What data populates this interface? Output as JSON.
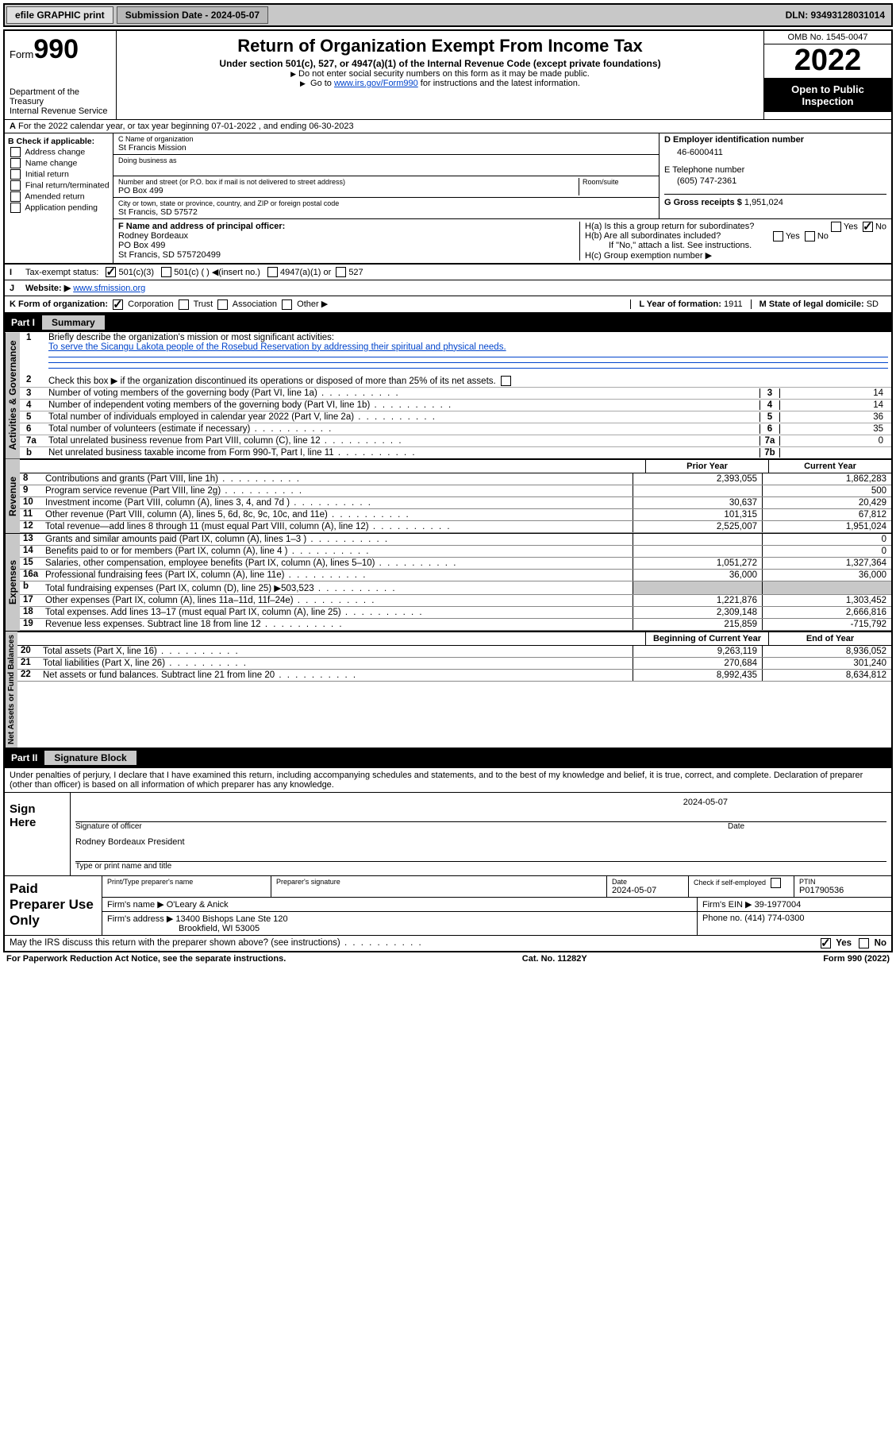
{
  "topbar": {
    "efile": "efile GRAPHIC print",
    "submission": "Submission Date - 2024-05-07",
    "dln": "DLN: 93493128031014"
  },
  "header": {
    "form": "Form",
    "form_no": "990",
    "title": "Return of Organization Exempt From Income Tax",
    "subtitle": "Under section 501(c), 527, or 4947(a)(1) of the Internal Revenue Code (except private foundations)",
    "note1": "Do not enter social security numbers on this form as it may be made public.",
    "note2_pre": "Go to ",
    "note2_link": "www.irs.gov/Form990",
    "note2_post": " for instructions and the latest information.",
    "dept": "Department of the Treasury",
    "irs": "Internal Revenue Service",
    "omb": "OMB No. 1545-0047",
    "year": "2022",
    "open": "Open to Public Inspection"
  },
  "line_a": "For the 2022 calendar year, or tax year beginning 07-01-2022  , and ending 06-30-2023",
  "box_b": {
    "hdr": "B Check if applicable:",
    "opts": [
      "Address change",
      "Name change",
      "Initial return",
      "Final return/terminated",
      "Amended return",
      "Application pending"
    ]
  },
  "box_c": {
    "lbl_name": "C Name of organization",
    "name": "St Francis Mission",
    "lbl_dba": "Doing business as",
    "lbl_street": "Number and street (or P.O. box if mail is not delivered to street address)",
    "street": "PO Box 499",
    "lbl_room": "Room/suite",
    "lbl_city": "City or town, state or province, country, and ZIP or foreign postal code",
    "city": "St Francis, SD  57572"
  },
  "box_d": {
    "lbl": "D Employer identification number",
    "val": "46-6000411"
  },
  "box_e": {
    "lbl": "E Telephone number",
    "val": "(605) 747-2361"
  },
  "box_g": {
    "lbl": "G Gross receipts $",
    "val": "1,951,024"
  },
  "box_f": {
    "lbl": "F Name and address of principal officer:",
    "name": "Rodney Bordeaux",
    "addr1": "PO Box 499",
    "addr2": "St Francis, SD  575720499"
  },
  "box_h": {
    "ha": "H(a)  Is this a group return for subordinates?",
    "hb": "H(b)  Are all subordinates included?",
    "hb_note": "If \"No,\" attach a list. See instructions.",
    "hc": "H(c)  Group exemption number ▶",
    "yes": "Yes",
    "no": "No"
  },
  "line_i": {
    "lbl": "Tax-exempt status:",
    "o1": "501(c)(3)",
    "o2": "501(c) (  ) ◀(insert no.)",
    "o3": "4947(a)(1) or",
    "o4": "527"
  },
  "line_j": {
    "lbl": "Website: ▶",
    "val": "www.sfmission.org"
  },
  "line_k": {
    "lbl": "K Form of organization:",
    "o1": "Corporation",
    "o2": "Trust",
    "o3": "Association",
    "o4": "Other ▶",
    "l_lbl": "L Year of formation:",
    "l_val": "1911",
    "m_lbl": "M State of legal domicile:",
    "m_val": "SD"
  },
  "part1": {
    "pt": "Part I",
    "ttl": "Summary"
  },
  "summary": {
    "q1_lbl": "Briefly describe the organization's mission or most significant activities:",
    "q1_val": "To serve the Sicangu Lakota people of the Rosebud Reservation by addressing their spiritual and physical needs.",
    "q2": "Check this box ▶      if the organization discontinued its operations or disposed of more than 25% of its net assets.",
    "rows": [
      {
        "n": "3",
        "t": "Number of voting members of the governing body (Part VI, line 1a)",
        "b": "3",
        "v": "14"
      },
      {
        "n": "4",
        "t": "Number of independent voting members of the governing body (Part VI, line 1b)",
        "b": "4",
        "v": "14"
      },
      {
        "n": "5",
        "t": "Total number of individuals employed in calendar year 2022 (Part V, line 2a)",
        "b": "5",
        "v": "36"
      },
      {
        "n": "6",
        "t": "Total number of volunteers (estimate if necessary)",
        "b": "6",
        "v": "35"
      },
      {
        "n": "7a",
        "t": "Total unrelated business revenue from Part VIII, column (C), line 12",
        "b": "7a",
        "v": "0"
      },
      {
        "n": "b",
        "t": "Net unrelated business taxable income from Form 990-T, Part I, line 11",
        "b": "7b",
        "v": ""
      }
    ]
  },
  "fin_hdr": {
    "prior": "Prior Year",
    "current": "Current Year"
  },
  "revenue": [
    {
      "n": "8",
      "t": "Contributions and grants (Part VIII, line 1h)",
      "p": "2,393,055",
      "c": "1,862,283"
    },
    {
      "n": "9",
      "t": "Program service revenue (Part VIII, line 2g)",
      "p": "",
      "c": "500"
    },
    {
      "n": "10",
      "t": "Investment income (Part VIII, column (A), lines 3, 4, and 7d )",
      "p": "30,637",
      "c": "20,429"
    },
    {
      "n": "11",
      "t": "Other revenue (Part VIII, column (A), lines 5, 6d, 8c, 9c, 10c, and 11e)",
      "p": "101,315",
      "c": "67,812"
    },
    {
      "n": "12",
      "t": "Total revenue—add lines 8 through 11 (must equal Part VIII, column (A), line 12)",
      "p": "2,525,007",
      "c": "1,951,024"
    }
  ],
  "expenses": [
    {
      "n": "13",
      "t": "Grants and similar amounts paid (Part IX, column (A), lines 1–3 )",
      "p": "",
      "c": "0"
    },
    {
      "n": "14",
      "t": "Benefits paid to or for members (Part IX, column (A), line 4 )",
      "p": "",
      "c": "0"
    },
    {
      "n": "15",
      "t": "Salaries, other compensation, employee benefits (Part IX, column (A), lines 5–10)",
      "p": "1,051,272",
      "c": "1,327,364"
    },
    {
      "n": "16a",
      "t": "Professional fundraising fees (Part IX, column (A), line 11e)",
      "p": "36,000",
      "c": "36,000"
    },
    {
      "n": "b",
      "t": "Total fundraising expenses (Part IX, column (D), line 25) ▶503,523",
      "p": "shade",
      "c": "shade"
    },
    {
      "n": "17",
      "t": "Other expenses (Part IX, column (A), lines 11a–11d, 11f–24e)",
      "p": "1,221,876",
      "c": "1,303,452"
    },
    {
      "n": "18",
      "t": "Total expenses. Add lines 13–17 (must equal Part IX, column (A), line 25)",
      "p": "2,309,148",
      "c": "2,666,816"
    },
    {
      "n": "19",
      "t": "Revenue less expenses. Subtract line 18 from line 12",
      "p": "215,859",
      "c": "-715,792"
    }
  ],
  "net_hdr": {
    "beg": "Beginning of Current Year",
    "end": "End of Year"
  },
  "net": [
    {
      "n": "20",
      "t": "Total assets (Part X, line 16)",
      "p": "9,263,119",
      "c": "8,936,052"
    },
    {
      "n": "21",
      "t": "Total liabilities (Part X, line 26)",
      "p": "270,684",
      "c": "301,240"
    },
    {
      "n": "22",
      "t": "Net assets or fund balances. Subtract line 21 from line 20",
      "p": "8,992,435",
      "c": "8,634,812"
    }
  ],
  "part2": {
    "pt": "Part II",
    "ttl": "Signature Block"
  },
  "sig": {
    "perjury": "Under penalties of perjury, I declare that I have examined this return, including accompanying schedules and statements, and to the best of my knowledge and belief, it is true, correct, and complete. Declaration of preparer (other than officer) is based on all information of which preparer has any knowledge.",
    "sign_here": "Sign Here",
    "sig_officer": "Signature of officer",
    "date": "Date",
    "date_val": "2024-05-07",
    "name": "Rodney Bordeaux  President",
    "name_lbl": "Type or print name and title"
  },
  "prep": {
    "title": "Paid Preparer Use Only",
    "h1": "Print/Type preparer's name",
    "h2": "Preparer's signature",
    "h3": "Date",
    "h3v": "2024-05-07",
    "h4": "Check        if self-employed",
    "h5": "PTIN",
    "h5v": "P01790536",
    "firm_lbl": "Firm's name    ▶",
    "firm": "O'Leary & Anick",
    "ein_lbl": "Firm's EIN ▶",
    "ein": "39-1977004",
    "addr_lbl": "Firm's address ▶",
    "addr1": "13400 Bishops Lane Ste 120",
    "addr2": "Brookfield, WI  53005",
    "phone_lbl": "Phone no.",
    "phone": "(414) 774-0300"
  },
  "discuss": {
    "q": "May the IRS discuss this return with the preparer shown above? (see instructions)",
    "yes": "Yes",
    "no": "No"
  },
  "footer": {
    "pra": "For Paperwork Reduction Act Notice, see the separate instructions.",
    "cat": "Cat. No. 11282Y",
    "form": "Form 990 (2022)"
  },
  "side": {
    "ag": "Activities & Governance",
    "rev": "Revenue",
    "exp": "Expenses",
    "net": "Net Assets or Fund Balances"
  }
}
